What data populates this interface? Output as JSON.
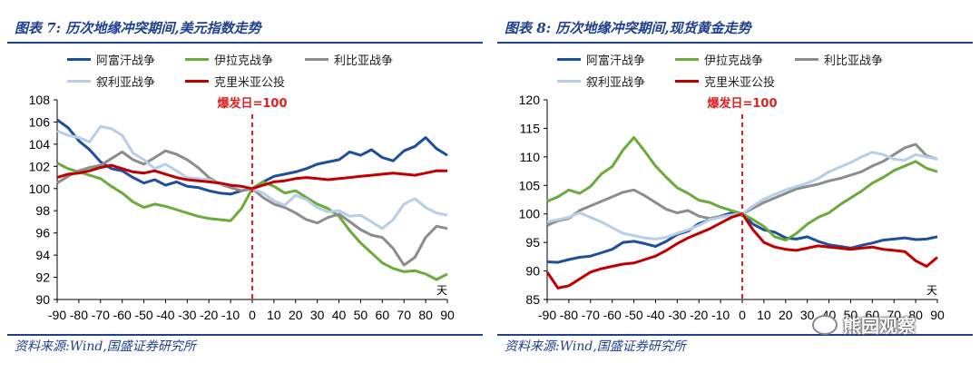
{
  "panels": [
    {
      "title": "图表 7:  历次地缘冲突期间,美元指数走势",
      "source": "资料来源:Wind,国盛证券研究所",
      "chart_data": {
        "type": "line",
        "title": "历次地缘冲突期间,美元指数走势",
        "xlabel": "天",
        "xlim": [
          -90,
          90
        ],
        "ylim": [
          90,
          108
        ],
        "yticks": [
          90,
          92,
          94,
          96,
          98,
          100,
          102,
          104,
          106,
          108
        ],
        "xticks": [
          -90,
          -80,
          -70,
          -60,
          -50,
          -40,
          -30,
          -20,
          -10,
          0,
          10,
          20,
          30,
          40,
          50,
          60,
          70,
          80,
          90
        ],
        "annotation": "爆发日=100",
        "series": [
          {
            "name": "阿富汗战争",
            "color": "#1f4e9c",
            "x": [
              -90,
              -85,
              -80,
              -75,
              -70,
              -65,
              -60,
              -55,
              -50,
              -45,
              -40,
              -35,
              -30,
              -25,
              -20,
              -15,
              -10,
              -5,
              0,
              5,
              10,
              15,
              20,
              25,
              30,
              35,
              40,
              45,
              50,
              55,
              60,
              65,
              70,
              75,
              80,
              85,
              90
            ],
            "values": [
              106.2,
              105.5,
              104.3,
              103.5,
              102.4,
              101.8,
              101.6,
              101.0,
              100.5,
              100.8,
              100.3,
              100.6,
              100.2,
              100.1,
              99.8,
              99.6,
              99.5,
              99.8,
              100,
              100.6,
              101.1,
              101.3,
              101.5,
              101.8,
              102.2,
              102.4,
              102.6,
              103.3,
              103.0,
              103.5,
              102.8,
              102.5,
              103.4,
              103.8,
              104.6,
              103.6,
              103.0
            ]
          },
          {
            "name": "伊拉克战争",
            "color": "#6aab3c",
            "x": [
              -90,
              -85,
              -80,
              -75,
              -70,
              -65,
              -60,
              -55,
              -50,
              -45,
              -40,
              -35,
              -30,
              -25,
              -20,
              -15,
              -10,
              -5,
              0,
              5,
              10,
              15,
              20,
              25,
              30,
              35,
              40,
              45,
              50,
              55,
              60,
              65,
              70,
              75,
              80,
              85,
              90
            ],
            "values": [
              102.3,
              101.8,
              101.5,
              101.2,
              100.9,
              100.2,
              99.6,
              98.8,
              98.3,
              98.6,
              98.4,
              98.1,
              97.8,
              97.5,
              97.3,
              97.2,
              97.1,
              98.2,
              100,
              100.6,
              100.2,
              99.6,
              99.8,
              99.2,
              98.6,
              98.2,
              97.5,
              96.2,
              95.1,
              94.2,
              93.3,
              92.8,
              92.5,
              92.6,
              92.3,
              91.8,
              92.3
            ]
          },
          {
            "name": "利比亚战争",
            "color": "#8c8c8c",
            "x": [
              -90,
              -85,
              -80,
              -75,
              -70,
              -65,
              -60,
              -55,
              -50,
              -45,
              -40,
              -35,
              -30,
              -25,
              -20,
              -15,
              -10,
              -5,
              0,
              5,
              10,
              15,
              20,
              25,
              30,
              35,
              40,
              45,
              50,
              55,
              60,
              65,
              70,
              75,
              80,
              85,
              90
            ],
            "values": [
              100.5,
              101.1,
              101.6,
              101.9,
              102.1,
              102.7,
              103.3,
              102.6,
              102.2,
              102.8,
              103.4,
              103.1,
              102.6,
              101.9,
              101.0,
              100.4,
              100.1,
              99.8,
              100,
              99.2,
              98.6,
              98.3,
              97.8,
              97.2,
              96.9,
              97.4,
              97.7,
              97.0,
              96.3,
              95.8,
              95.6,
              94.6,
              93.1,
              93.8,
              95.6,
              96.6,
              96.4
            ]
          },
          {
            "name": "叙利亚战争",
            "color": "#b8cde8",
            "x": [
              -90,
              -85,
              -80,
              -75,
              -70,
              -65,
              -60,
              -55,
              -50,
              -45,
              -40,
              -35,
              -30,
              -25,
              -20,
              -15,
              -10,
              -5,
              0,
              5,
              10,
              15,
              20,
              25,
              30,
              35,
              40,
              45,
              50,
              55,
              60,
              65,
              70,
              75,
              80,
              85,
              90
            ],
            "values": [
              105.2,
              104.8,
              104.6,
              104.2,
              105.6,
              105.4,
              104.8,
              103.2,
              102.6,
              101.8,
              102.2,
              101.6,
              101.0,
              100.9,
              100.8,
              100.4,
              100.3,
              100.2,
              100,
              99.6,
              98.9,
              98.5,
              99.4,
              99.0,
              98.3,
              97.9,
              98.0,
              97.5,
              97.6,
              97.0,
              96.4,
              97.2,
              98.6,
              99.1,
              98.3,
              97.8,
              97.6
            ]
          },
          {
            "name": "克里米亚公投",
            "color": "#c00000",
            "x": [
              -90,
              -85,
              -80,
              -75,
              -70,
              -65,
              -60,
              -55,
              -50,
              -45,
              -40,
              -35,
              -30,
              -25,
              -20,
              -15,
              -10,
              -5,
              0,
              5,
              10,
              15,
              20,
              25,
              30,
              35,
              40,
              45,
              50,
              55,
              60,
              65,
              70,
              75,
              80,
              85,
              90
            ],
            "values": [
              101.0,
              101.3,
              101.4,
              101.6,
              101.9,
              102.1,
              101.8,
              101.5,
              101.4,
              101.6,
              101.3,
              101.0,
              100.8,
              100.7,
              100.6,
              100.5,
              100.3,
              100.2,
              100,
              100.3,
              100.6,
              100.7,
              100.9,
              101.0,
              100.9,
              100.8,
              100.9,
              101.0,
              101.1,
              101.2,
              101.3,
              101.4,
              101.3,
              101.2,
              101.4,
              101.6,
              101.6
            ]
          }
        ]
      }
    },
    {
      "title": "图表 8:  历次地缘冲突期间,现货黄金走势",
      "source": "资料来源:Wind,国盛证券研究所",
      "chart_data": {
        "type": "line",
        "title": "历次地缘冲突期间,现货黄金走势",
        "xlabel": "天",
        "xlim": [
          -90,
          90
        ],
        "ylim": [
          85,
          120
        ],
        "yticks": [
          85,
          90,
          95,
          100,
          105,
          110,
          115,
          120
        ],
        "xticks": [
          -90,
          -80,
          -70,
          -60,
          -50,
          -40,
          -30,
          -20,
          -10,
          0,
          10,
          20,
          30,
          40,
          50,
          60,
          70,
          80,
          90
        ],
        "annotation": "爆发日=100",
        "series": [
          {
            "name": "阿富汗战争",
            "color": "#1f4e9c",
            "x": [
              -90,
              -85,
              -80,
              -75,
              -70,
              -65,
              -60,
              -55,
              -50,
              -45,
              -40,
              -35,
              -30,
              -25,
              -20,
              -15,
              -10,
              -5,
              0,
              5,
              10,
              15,
              20,
              25,
              30,
              35,
              40,
              45,
              50,
              55,
              60,
              65,
              70,
              75,
              80,
              85,
              90
            ],
            "values": [
              91.6,
              91.5,
              92.0,
              92.4,
              92.6,
              93.2,
              93.8,
              95.0,
              95.2,
              94.8,
              94.3,
              95.2,
              96.4,
              97.0,
              98.3,
              99.0,
              99.6,
              100.2,
              100,
              98.2,
              97.2,
              96.8,
              95.8,
              95.6,
              96.0,
              95.2,
              94.6,
              94.3,
              94.0,
              94.5,
              94.9,
              95.4,
              95.6,
              95.8,
              95.5,
              95.6,
              96.0
            ]
          },
          {
            "name": "伊拉克战争",
            "color": "#6aab3c",
            "x": [
              -90,
              -85,
              -80,
              -75,
              -70,
              -65,
              -60,
              -55,
              -50,
              -45,
              -40,
              -35,
              -30,
              -25,
              -20,
              -15,
              -10,
              -5,
              0,
              5,
              10,
              15,
              20,
              25,
              30,
              35,
              40,
              45,
              50,
              55,
              60,
              65,
              70,
              75,
              80,
              85,
              90
            ],
            "values": [
              102.2,
              103.0,
              104.2,
              103.6,
              104.8,
              107.0,
              108.3,
              111.2,
              113.4,
              111.0,
              108.4,
              106.4,
              104.6,
              103.6,
              102.4,
              102.0,
              101.2,
              100.6,
              100,
              99.0,
              97.8,
              96.0,
              95.4,
              96.6,
              98.2,
              99.4,
              100.2,
              101.6,
              102.8,
              104.0,
              105.4,
              106.4,
              107.6,
              108.4,
              109.2,
              108.0,
              107.4
            ]
          },
          {
            "name": "利比亚战争",
            "color": "#8c8c8c",
            "x": [
              -90,
              -85,
              -80,
              -75,
              -70,
              -65,
              -60,
              -55,
              -50,
              -45,
              -40,
              -35,
              -30,
              -25,
              -20,
              -15,
              -10,
              -5,
              0,
              5,
              10,
              15,
              20,
              25,
              30,
              35,
              40,
              45,
              50,
              55,
              60,
              65,
              70,
              75,
              80,
              85,
              90
            ],
            "values": [
              98.0,
              98.8,
              99.2,
              100.6,
              101.4,
              102.2,
              103.0,
              103.8,
              104.2,
              103.2,
              102.0,
              100.8,
              100.2,
              100.6,
              99.6,
              99.2,
              99.6,
              99.8,
              100,
              101.0,
              102.0,
              102.8,
              103.6,
              104.4,
              104.8,
              105.2,
              105.8,
              106.2,
              106.8,
              107.4,
              108.4,
              109.2,
              110.4,
              111.6,
              112.2,
              110.2,
              109.6
            ]
          },
          {
            "name": "叙利亚战争",
            "color": "#b8cde8",
            "x": [
              -90,
              -85,
              -80,
              -75,
              -70,
              -65,
              -60,
              -55,
              -50,
              -45,
              -40,
              -35,
              -30,
              -25,
              -20,
              -15,
              -10,
              -5,
              0,
              5,
              10,
              15,
              20,
              25,
              30,
              35,
              40,
              45,
              50,
              55,
              60,
              65,
              70,
              75,
              80,
              85,
              90
            ],
            "values": [
              98.6,
              99.0,
              99.4,
              100.2,
              99.4,
              98.6,
              97.6,
              96.6,
              96.2,
              95.8,
              95.6,
              95.9,
              96.6,
              97.2,
              98.0,
              99.0,
              99.4,
              99.8,
              100,
              101.4,
              102.6,
              103.4,
              104.2,
              104.8,
              105.4,
              106.2,
              107.4,
              108.2,
              109.0,
              110.0,
              110.8,
              110.4,
              109.6,
              109.4,
              110.4,
              110.0,
              109.6
            ]
          },
          {
            "name": "克里米亚公投",
            "color": "#c00000",
            "x": [
              -90,
              -85,
              -80,
              -75,
              -70,
              -65,
              -60,
              -55,
              -50,
              -45,
              -40,
              -35,
              -30,
              -25,
              -20,
              -15,
              -10,
              -5,
              0,
              5,
              10,
              15,
              20,
              25,
              30,
              35,
              40,
              45,
              50,
              55,
              60,
              65,
              70,
              75,
              80,
              85,
              90
            ],
            "values": [
              89.8,
              87.0,
              87.4,
              88.6,
              89.8,
              90.4,
              90.8,
              91.2,
              91.4,
              92.0,
              92.6,
              93.6,
              94.8,
              95.8,
              96.6,
              97.4,
              98.4,
              99.4,
              100,
              97.2,
              95.0,
              94.2,
              93.8,
              93.6,
              94.0,
              94.4,
              94.2,
              94.0,
              93.8,
              94.0,
              94.2,
              93.8,
              93.6,
              93.4,
              91.8,
              90.8,
              92.4
            ]
          }
        ]
      }
    }
  ],
  "watermark": "熊园观察"
}
